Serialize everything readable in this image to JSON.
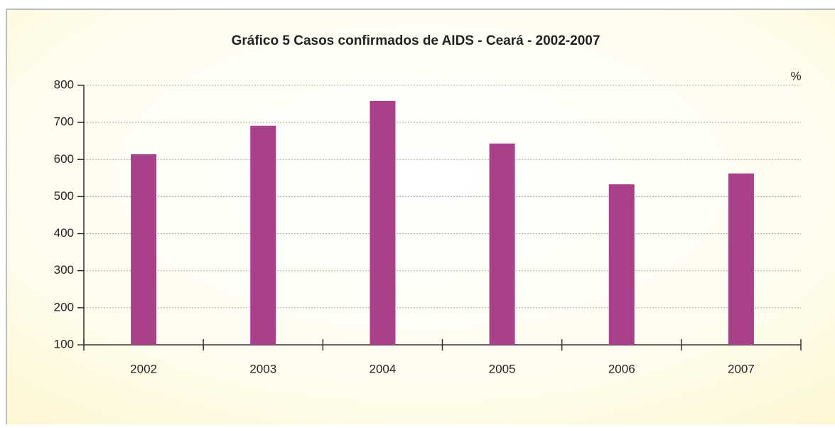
{
  "chart_data": {
    "type": "bar",
    "title": "Gráfico 5  Casos confirmados de AIDS  - Ceará - 2002-2007",
    "y_unit": "%",
    "categories": [
      "2002",
      "2003",
      "2004",
      "2005",
      "2006",
      "2007"
    ],
    "values": [
      614,
      691,
      758,
      643,
      533,
      562
    ],
    "color": "#a8408a",
    "ylim": [
      100,
      800
    ],
    "yticks": [
      100,
      200,
      300,
      400,
      500,
      600,
      700,
      800
    ],
    "grid": true
  }
}
